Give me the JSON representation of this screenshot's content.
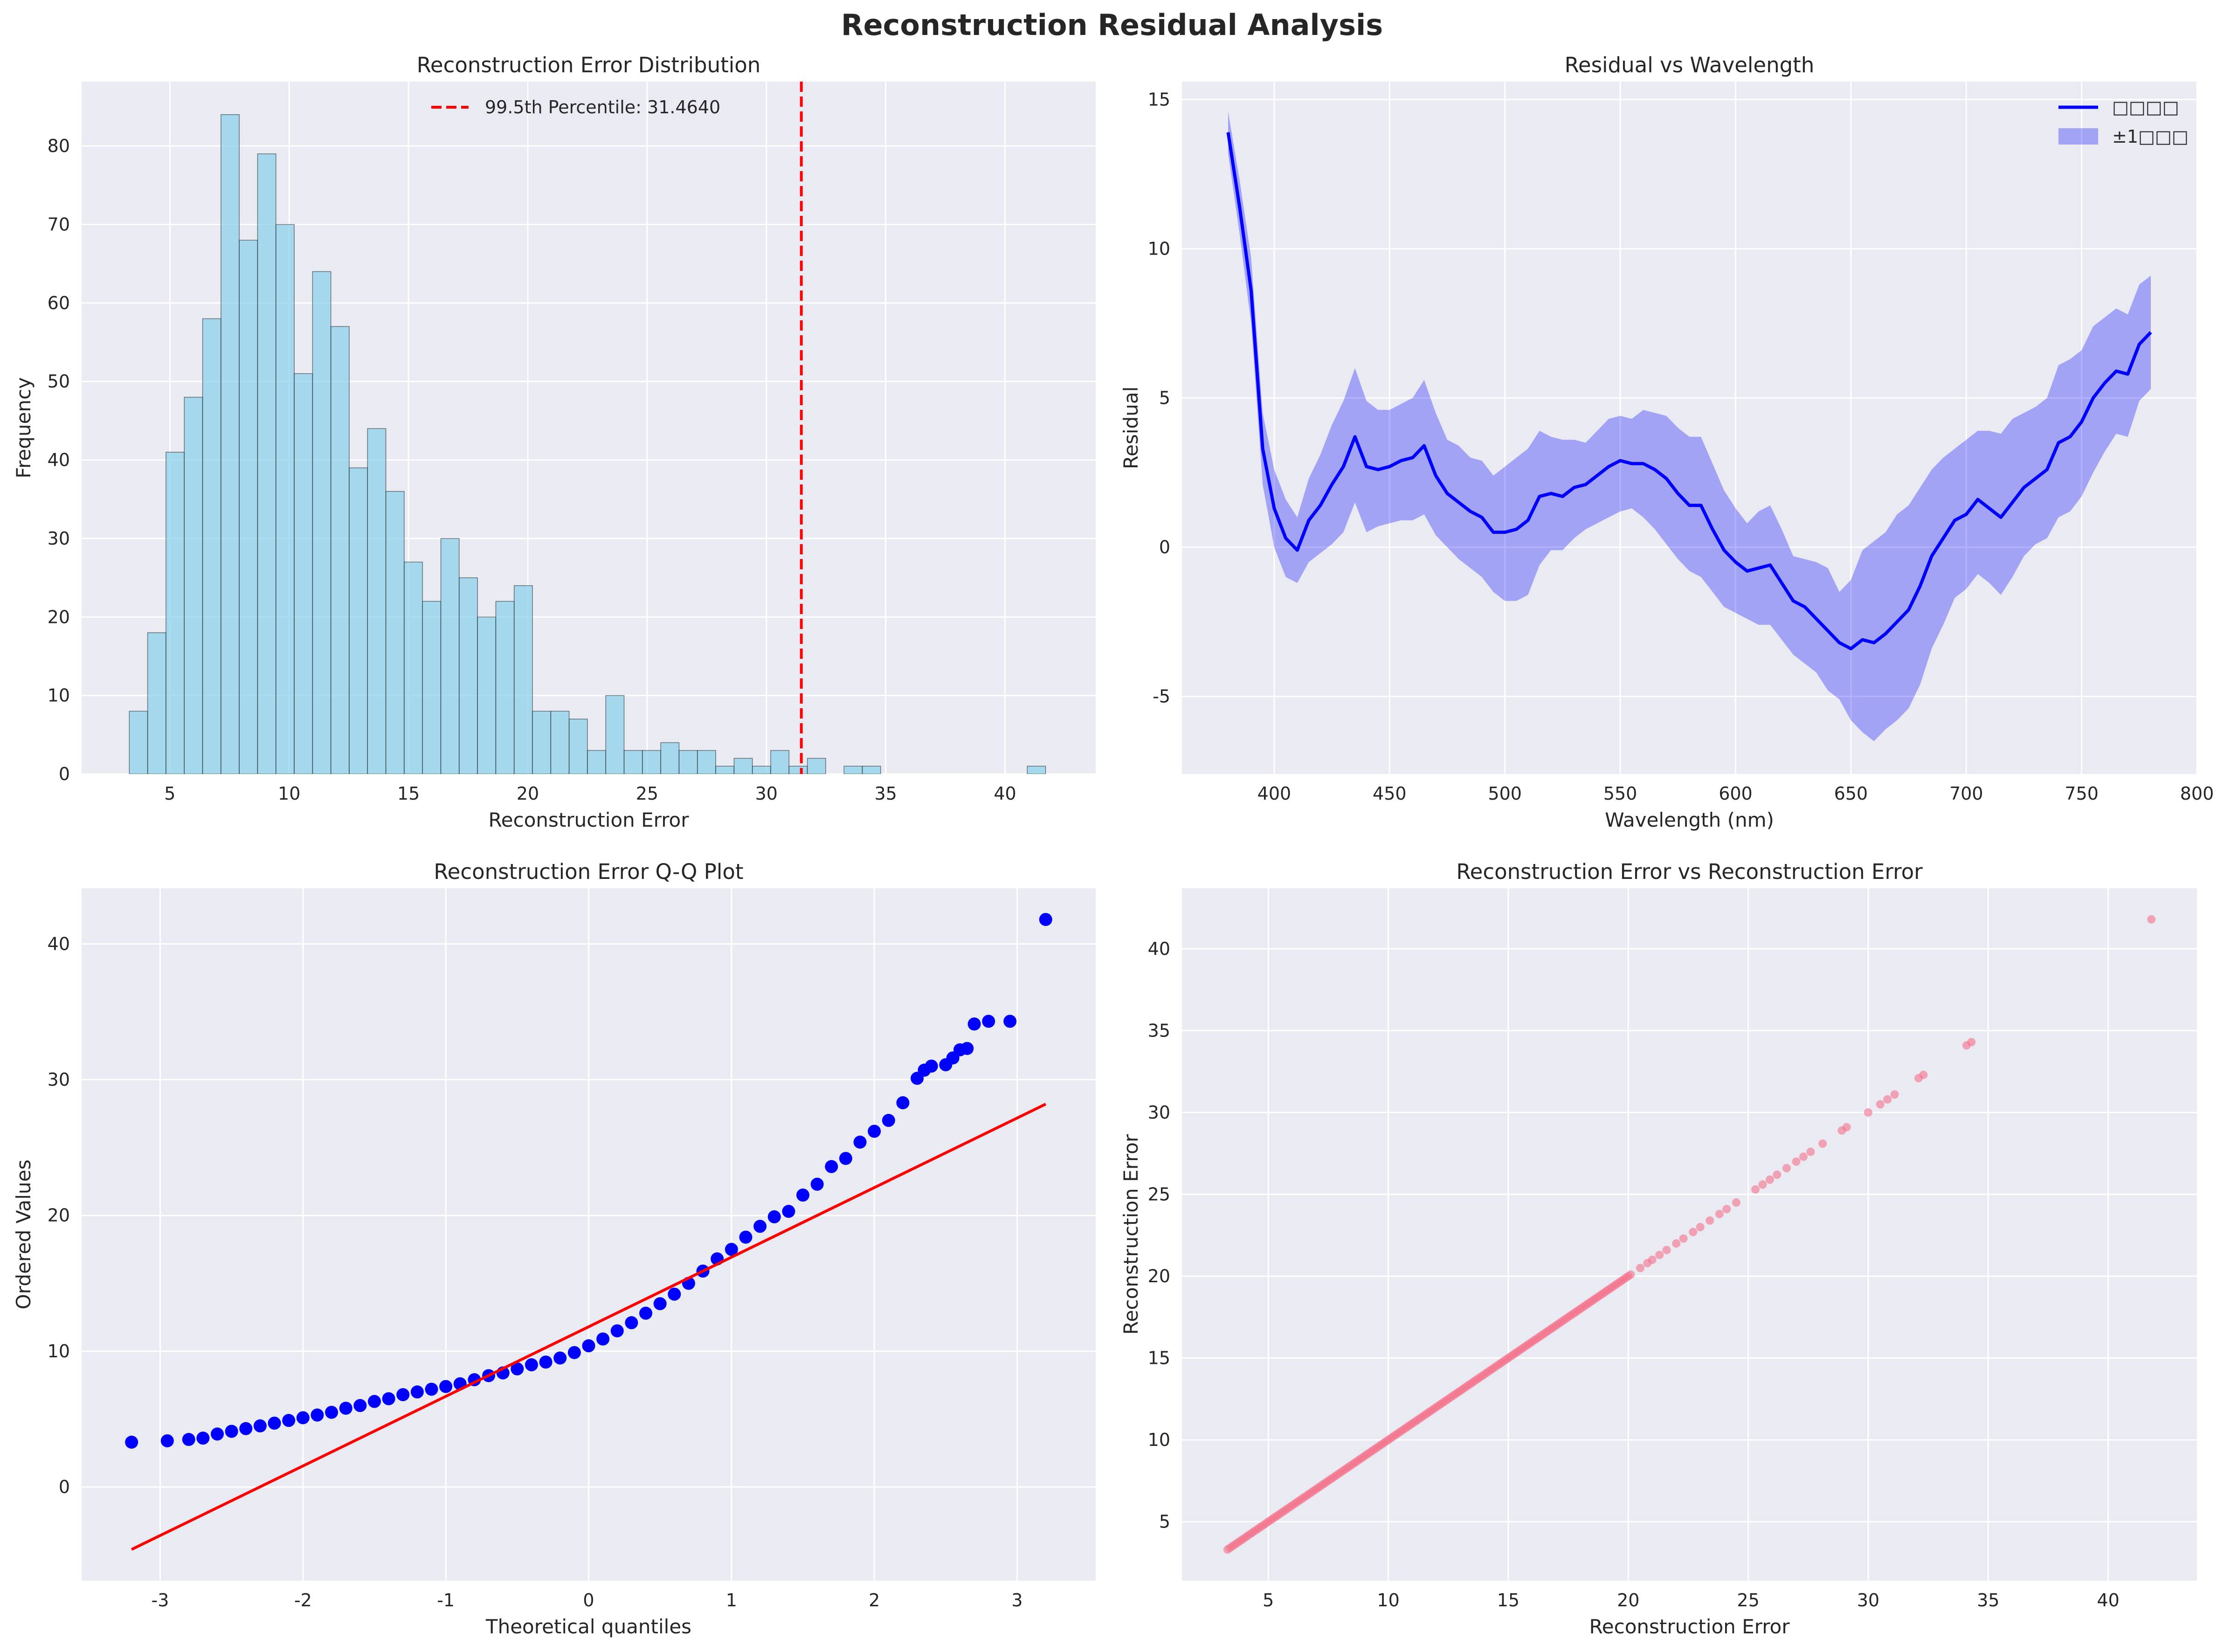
{
  "figure": {
    "title": "Reconstruction Residual Analysis"
  },
  "colors": {
    "panel_bg": "#EAEAF2",
    "grid": "#FFFFFF",
    "hist_fill": "#87CEEB",
    "hist_edge": "#000000",
    "percentile_line": "#FF0000",
    "mean_line": "#0000FF",
    "band_fill": "#0000FF",
    "qq_points": "#0000FF",
    "qq_line": "#FF0000",
    "scatter_points": "#F37088"
  },
  "chart_data": [
    {
      "type": "bar",
      "title": "Reconstruction Error Distribution",
      "xlabel": "Reconstruction Error",
      "ylabel": "Frequency",
      "xlim": [
        1.3,
        43.8
      ],
      "ylim": [
        0,
        88.2
      ],
      "xticks": [
        5,
        10,
        15,
        20,
        25,
        30,
        35,
        40
      ],
      "yticks": [
        0,
        10,
        20,
        30,
        40,
        50,
        60,
        70,
        80
      ],
      "bin_start": 3.3,
      "bin_width": 0.768,
      "counts": [
        8,
        18,
        41,
        48,
        58,
        84,
        68,
        79,
        70,
        51,
        64,
        57,
        39,
        44,
        36,
        27,
        22,
        30,
        25,
        20,
        22,
        24,
        8,
        8,
        7,
        3,
        10,
        3,
        3,
        4,
        3,
        3,
        1,
        2,
        1,
        3,
        1,
        2,
        0,
        1,
        1,
        0,
        0,
        0,
        0,
        0,
        0,
        0,
        0,
        1
      ],
      "vline": {
        "x": 31.464,
        "label": "99.5th Percentile: 31.4640"
      },
      "legend": "top-center",
      "grid": true
    },
    {
      "type": "line",
      "title": "Residual vs Wavelength",
      "xlabel": "Wavelength (nm)",
      "ylabel": "Residual",
      "xlim": [
        360,
        800
      ],
      "ylim": [
        -7.6,
        15.6
      ],
      "xticks": [
        400,
        450,
        500,
        550,
        600,
        650,
        700,
        750,
        800
      ],
      "yticks": [
        -5,
        0,
        5,
        10,
        15
      ],
      "x": [
        380,
        385,
        390,
        395,
        400,
        405,
        410,
        415,
        420,
        425,
        430,
        435,
        440,
        445,
        450,
        455,
        460,
        465,
        470,
        475,
        480,
        485,
        490,
        495,
        500,
        505,
        510,
        515,
        520,
        525,
        530,
        535,
        540,
        545,
        550,
        555,
        560,
        565,
        570,
        575,
        580,
        585,
        590,
        595,
        600,
        605,
        610,
        615,
        620,
        625,
        630,
        635,
        640,
        645,
        650,
        655,
        660,
        665,
        670,
        675,
        680,
        685,
        690,
        695,
        700,
        705,
        710,
        715,
        720,
        725,
        730,
        735,
        740,
        745,
        750,
        755,
        760,
        765,
        770,
        775,
        780
      ],
      "mean": [
        13.9,
        11.4,
        8.6,
        3.3,
        1.3,
        0.3,
        -0.1,
        0.9,
        1.4,
        2.1,
        2.7,
        3.7,
        2.7,
        2.6,
        2.7,
        2.9,
        3.0,
        3.4,
        2.4,
        1.8,
        1.5,
        1.2,
        1.0,
        0.5,
        0.5,
        0.6,
        0.9,
        1.7,
        1.8,
        1.7,
        2.0,
        2.1,
        2.4,
        2.7,
        2.9,
        2.8,
        2.8,
        2.6,
        2.3,
        1.8,
        1.4,
        1.4,
        0.6,
        -0.1,
        -0.5,
        -0.8,
        -0.7,
        -0.6,
        -1.2,
        -1.8,
        -2.0,
        -2.4,
        -2.8,
        -3.2,
        -3.4,
        -3.1,
        -3.2,
        -2.9,
        -2.5,
        -2.1,
        -1.3,
        -0.3,
        0.3,
        0.9,
        1.1,
        1.6,
        1.3,
        1.0,
        1.5,
        2.0,
        2.3,
        2.6,
        3.5,
        3.7,
        4.2,
        5.0,
        5.5,
        5.9,
        5.8,
        6.8,
        7.2
      ],
      "lower": [
        13.2,
        10.5,
        7.5,
        2.1,
        0.0,
        -1.0,
        -1.2,
        -0.5,
        -0.2,
        0.1,
        0.5,
        1.5,
        0.5,
        0.7,
        0.8,
        0.9,
        0.9,
        1.1,
        0.4,
        0.0,
        -0.4,
        -0.7,
        -1.0,
        -1.5,
        -1.8,
        -1.8,
        -1.6,
        -0.6,
        -0.1,
        -0.1,
        0.3,
        0.6,
        0.8,
        1.0,
        1.2,
        1.3,
        1.0,
        0.6,
        0.1,
        -0.4,
        -0.8,
        -1.0,
        -1.5,
        -2.0,
        -2.2,
        -2.4,
        -2.6,
        -2.6,
        -3.1,
        -3.6,
        -3.9,
        -4.2,
        -4.8,
        -5.1,
        -5.8,
        -6.2,
        -6.5,
        -6.1,
        -5.8,
        -5.4,
        -4.6,
        -3.4,
        -2.6,
        -1.7,
        -1.4,
        -0.9,
        -1.2,
        -1.6,
        -1.0,
        -0.3,
        0.1,
        0.3,
        1.0,
        1.2,
        1.7,
        2.5,
        3.2,
        3.8,
        3.7,
        4.9,
        5.3
      ],
      "upper": [
        14.6,
        12.3,
        9.7,
        4.5,
        2.6,
        1.6,
        1.0,
        2.3,
        3.1,
        4.1,
        4.9,
        6.0,
        4.9,
        4.6,
        4.6,
        4.8,
        5.0,
        5.6,
        4.5,
        3.6,
        3.4,
        3.0,
        2.9,
        2.4,
        2.7,
        3.0,
        3.3,
        3.9,
        3.7,
        3.6,
        3.6,
        3.5,
        3.9,
        4.3,
        4.4,
        4.3,
        4.6,
        4.5,
        4.4,
        4.0,
        3.7,
        3.7,
        2.8,
        1.9,
        1.3,
        0.8,
        1.2,
        1.4,
        0.6,
        -0.3,
        -0.4,
        -0.5,
        -0.7,
        -1.5,
        -1.1,
        -0.1,
        0.2,
        0.5,
        1.1,
        1.4,
        2.0,
        2.6,
        3.0,
        3.3,
        3.6,
        3.9,
        3.9,
        3.8,
        4.3,
        4.5,
        4.7,
        5.0,
        6.1,
        6.3,
        6.6,
        7.4,
        7.7,
        8.0,
        7.8,
        8.8,
        9.1
      ],
      "series": [
        {
          "name": "□□□□"
        },
        {
          "name": "±1□□□"
        }
      ],
      "legend": "top-right",
      "grid": true
    },
    {
      "type": "scatter",
      "title": "Reconstruction Error Q-Q Plot",
      "xlabel": "Theoretical quantiles",
      "ylabel": "Ordered Values",
      "xlim": [
        -3.55,
        3.55
      ],
      "ylim": [
        -6.9,
        44.1
      ],
      "xticks": [
        -3,
        -2,
        -1,
        0,
        1,
        2,
        3
      ],
      "yticks": [
        0,
        10,
        20,
        30,
        40
      ],
      "points_x": [
        -3.2,
        -2.95,
        -2.8,
        -2.7,
        -2.6,
        -2.5,
        -2.4,
        -2.3,
        -2.2,
        -2.1,
        -2.0,
        -1.9,
        -1.8,
        -1.7,
        -1.6,
        -1.5,
        -1.4,
        -1.3,
        -1.2,
        -1.1,
        -1.0,
        -0.9,
        -0.8,
        -0.7,
        -0.6,
        -0.5,
        -0.4,
        -0.3,
        -0.2,
        -0.1,
        0.0,
        0.1,
        0.2,
        0.3,
        0.4,
        0.5,
        0.6,
        0.7,
        0.8,
        0.9,
        1.0,
        1.1,
        1.2,
        1.3,
        1.4,
        1.5,
        1.6,
        1.7,
        1.8,
        1.9,
        2.0,
        2.1,
        2.2,
        2.3,
        2.35,
        2.4,
        2.5,
        2.55,
        2.6,
        2.65,
        2.7,
        2.8,
        2.95,
        3.2
      ],
      "points_y": [
        3.3,
        3.4,
        3.5,
        3.6,
        3.9,
        4.1,
        4.3,
        4.5,
        4.7,
        4.9,
        5.1,
        5.3,
        5.5,
        5.8,
        6.0,
        6.3,
        6.5,
        6.8,
        7.0,
        7.2,
        7.4,
        7.6,
        7.9,
        8.2,
        8.4,
        8.7,
        9.0,
        9.2,
        9.5,
        9.9,
        10.4,
        10.9,
        11.5,
        12.1,
        12.8,
        13.5,
        14.2,
        15.0,
        15.9,
        16.8,
        17.5,
        18.4,
        19.2,
        19.9,
        20.3,
        21.5,
        22.3,
        23.6,
        24.2,
        25.4,
        26.2,
        27.0,
        28.3,
        30.1,
        30.7,
        31.0,
        31.1,
        31.6,
        32.2,
        32.3,
        34.1,
        34.3,
        34.3,
        41.8
      ],
      "fit_line": {
        "x": [
          -3.2,
          3.2
        ],
        "y": [
          -4.6,
          28.2
        ]
      },
      "grid": true
    },
    {
      "type": "scatter",
      "title": "Reconstruction Error vs Reconstruction Error",
      "xlabel": "Reconstruction Error",
      "ylabel": "Reconstruction Error",
      "xlim": [
        1.4,
        43.7
      ],
      "ylim": [
        1.4,
        43.7
      ],
      "xticks": [
        5,
        10,
        15,
        20,
        25,
        30,
        35,
        40
      ],
      "yticks": [
        5,
        10,
        15,
        20,
        25,
        30,
        35,
        40
      ],
      "diagonal_from": 3.3,
      "diagonal_to": 20.2,
      "extra_points": [
        20.5,
        20.8,
        21.0,
        21.3,
        21.6,
        22.0,
        22.3,
        22.7,
        23.0,
        23.4,
        23.8,
        24.1,
        24.5,
        25.3,
        25.6,
        25.9,
        26.2,
        26.6,
        27.0,
        27.3,
        27.6,
        28.1,
        28.9,
        29.1,
        30.0,
        30.5,
        30.8,
        31.1,
        32.1,
        32.3,
        34.1,
        34.3,
        41.8
      ],
      "grid": true
    }
  ]
}
